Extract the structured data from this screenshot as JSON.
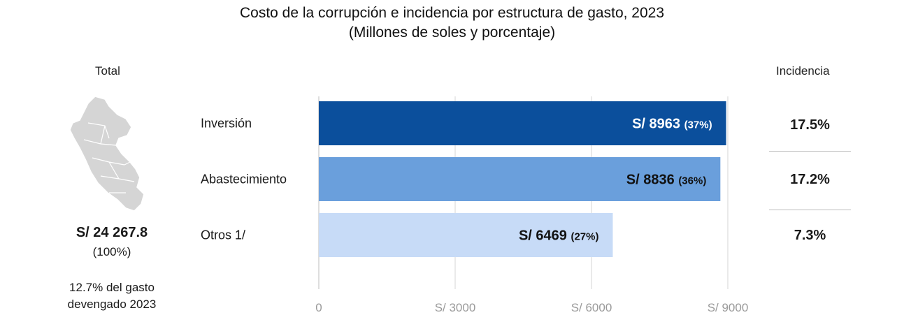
{
  "title_line1": "Costo de la corrupción e incidencia por estructura de gasto, 2023",
  "title_line2": "(Millones de soles y porcentaje)",
  "total": {
    "heading": "Total",
    "value": "S/ 24 267.8",
    "pct": "(100%)",
    "note_line1": "12.7% del gasto",
    "note_line2": "devengado 2023",
    "map_icon": "peru-map-icon"
  },
  "incidence": {
    "heading": "Incidencia",
    "values": [
      "17.5%",
      "17.2%",
      "7.3%"
    ]
  },
  "chart_data": {
    "type": "bar",
    "orientation": "horizontal",
    "categories": [
      "Inversión",
      "Abastecimiento",
      "Otros 1/"
    ],
    "values": [
      8963,
      8836,
      6469
    ],
    "value_labels": [
      "S/ 8963",
      "S/ 8836",
      "S/ 6469"
    ],
    "pct_labels": [
      "(37%)",
      "(36%)",
      "(27%)"
    ],
    "colors": [
      "#0b4f9c",
      "#6a9fdc",
      "#c7dbf7"
    ],
    "label_colors": [
      "#ffffff",
      "#111111",
      "#111111"
    ],
    "xlim": [
      0,
      9000
    ],
    "ticks": [
      0,
      3000,
      6000,
      9000
    ],
    "tick_labels": [
      "0",
      "S/ 3000",
      "S/ 6000",
      "S/ 9000"
    ],
    "grid": true
  }
}
